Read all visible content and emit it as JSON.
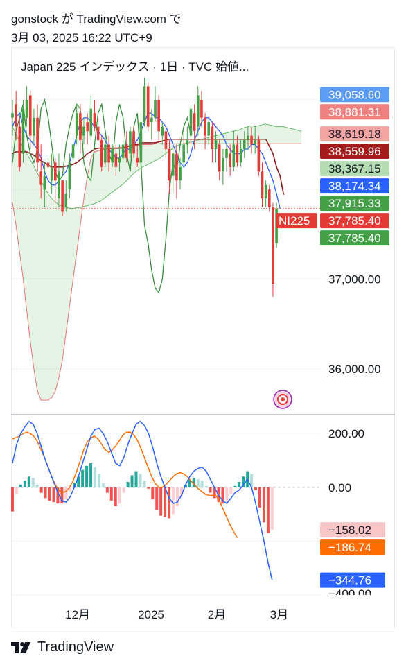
{
  "header": {
    "author": "gonstock が TradingView.com で",
    "timestamp": "3月 03, 2025 16:22 UTC+9"
  },
  "symbol_line": "Japan 225 インデックス · 1日 · TVC  始値...",
  "footer": {
    "brand": "TradingView"
  },
  "chart_data": [
    {
      "type": "candlestick",
      "title": "Japan 225 インデックス · 1日 · TVC",
      "x_tick_labels": [
        "12月",
        "2025",
        "2月",
        "3月"
      ],
      "y_ticks": [
        37000,
        36000
      ],
      "y_tick_labels": [
        "37,000.00",
        "36,000.00"
      ],
      "ylim": [
        35550,
        39200
      ],
      "price_labels": [
        {
          "text": "39,058.60",
          "value": 39058.6,
          "color": "#5b9cf6"
        },
        {
          "text": "38,881.31",
          "value": 38881.31,
          "color": "#f08080"
        },
        {
          "text": "38,619.18",
          "value": 38619.18,
          "color": "#f4a3a3"
        },
        {
          "text": "38,559.96",
          "value": 38559.96,
          "color": "#a61c1c"
        },
        {
          "text": "38,367.15",
          "value": 38367.15,
          "color": "#b6dcb4"
        },
        {
          "text": "38,174.34",
          "value": 38174.34,
          "color": "#2962ff"
        },
        {
          "text": "37,915.33",
          "value": 37915.33,
          "color": "#43a047"
        },
        {
          "text": "37,785.40",
          "value": 37785.4,
          "color": "#e53935"
        },
        {
          "text": "37,785.40",
          "value": 37785.4,
          "color": "#43a047"
        }
      ],
      "symbol_tag": {
        "text": "NI225",
        "color": "#e53935"
      },
      "last_close": 37785.4,
      "candles": [
        {
          "o": 38800,
          "c": 38850,
          "h": 39000,
          "l": 38600
        },
        {
          "o": 38950,
          "c": 38700,
          "h": 39100,
          "l": 38550
        },
        {
          "o": 38700,
          "c": 38250,
          "h": 38800,
          "l": 38200
        },
        {
          "o": 38400,
          "c": 38900,
          "h": 39000,
          "l": 38300
        },
        {
          "o": 38800,
          "c": 39000,
          "h": 39150,
          "l": 38700
        },
        {
          "o": 39050,
          "c": 38600,
          "h": 39100,
          "l": 38450
        },
        {
          "o": 38600,
          "c": 38800,
          "h": 38900,
          "l": 38500
        },
        {
          "o": 38800,
          "c": 38300,
          "h": 38950,
          "l": 38200
        },
        {
          "o": 38200,
          "c": 38050,
          "h": 38500,
          "l": 37900
        },
        {
          "o": 38000,
          "c": 38150,
          "h": 38300,
          "l": 37800
        },
        {
          "o": 38300,
          "c": 38250,
          "h": 38350,
          "l": 37950
        },
        {
          "o": 38100,
          "c": 38250,
          "h": 38400,
          "l": 37950
        },
        {
          "o": 38300,
          "c": 38100,
          "h": 38350,
          "l": 37850
        },
        {
          "o": 37900,
          "c": 38200,
          "h": 38400,
          "l": 37800
        },
        {
          "o": 38100,
          "c": 37750,
          "h": 38100,
          "l": 37700
        },
        {
          "o": 37800,
          "c": 37950,
          "h": 38100,
          "l": 37750
        },
        {
          "o": 38000,
          "c": 38300,
          "h": 38400,
          "l": 37900
        },
        {
          "o": 38350,
          "c": 38500,
          "h": 38600,
          "l": 38300
        },
        {
          "o": 38600,
          "c": 38850,
          "h": 38950,
          "l": 38500
        },
        {
          "o": 38850,
          "c": 38550,
          "h": 38950,
          "l": 38400
        },
        {
          "o": 38600,
          "c": 38700,
          "h": 38800,
          "l": 38500
        },
        {
          "o": 38750,
          "c": 38650,
          "h": 38850,
          "l": 38500
        },
        {
          "o": 38600,
          "c": 38900,
          "h": 39050,
          "l": 38550
        },
        {
          "o": 38850,
          "c": 38700,
          "h": 39000,
          "l": 38650
        },
        {
          "o": 38700,
          "c": 38550,
          "h": 38800,
          "l": 38500
        },
        {
          "o": 38550,
          "c": 38250,
          "h": 38600,
          "l": 38200
        },
        {
          "o": 38300,
          "c": 38500,
          "h": 38600,
          "l": 38250
        },
        {
          "o": 38500,
          "c": 38300,
          "h": 38600,
          "l": 38200
        },
        {
          "o": 38300,
          "c": 38450,
          "h": 38500,
          "l": 38250
        },
        {
          "o": 38400,
          "c": 38250,
          "h": 38500,
          "l": 38150
        },
        {
          "o": 38300,
          "c": 38350,
          "h": 38500,
          "l": 38200
        },
        {
          "o": 38350,
          "c": 38500,
          "h": 38550,
          "l": 38300
        },
        {
          "o": 38500,
          "c": 38350,
          "h": 38650,
          "l": 38300
        },
        {
          "o": 38400,
          "c": 38650,
          "h": 38700,
          "l": 38350
        },
        {
          "o": 38650,
          "c": 38400,
          "h": 38700,
          "l": 38350
        },
        {
          "o": 38350,
          "c": 38300,
          "h": 38500,
          "l": 38250
        },
        {
          "o": 38300,
          "c": 38750,
          "h": 38850,
          "l": 38250
        },
        {
          "o": 38750,
          "c": 39150,
          "h": 39250,
          "l": 38700
        },
        {
          "o": 39150,
          "c": 38700,
          "h": 39200,
          "l": 38650
        },
        {
          "o": 38750,
          "c": 38800,
          "h": 38900,
          "l": 38550
        },
        {
          "o": 38800,
          "c": 39000,
          "h": 39150,
          "l": 38750
        },
        {
          "o": 39000,
          "c": 38650,
          "h": 39050,
          "l": 38550
        },
        {
          "o": 38600,
          "c": 38700,
          "h": 38750,
          "l": 38500
        },
        {
          "o": 38650,
          "c": 38450,
          "h": 38700,
          "l": 38350
        },
        {
          "o": 38450,
          "c": 38100,
          "h": 38550,
          "l": 37950
        },
        {
          "o": 38150,
          "c": 38400,
          "h": 38450,
          "l": 37950
        },
        {
          "o": 38400,
          "c": 38100,
          "h": 38500,
          "l": 37900
        },
        {
          "o": 38100,
          "c": 38250,
          "h": 38350,
          "l": 38000
        },
        {
          "o": 38300,
          "c": 38500,
          "h": 38650,
          "l": 38250
        },
        {
          "o": 38500,
          "c": 38550,
          "h": 38700,
          "l": 38400
        },
        {
          "o": 38600,
          "c": 38900,
          "h": 38950,
          "l": 38500
        },
        {
          "o": 38850,
          "c": 38650,
          "h": 38950,
          "l": 38450
        },
        {
          "o": 38700,
          "c": 39050,
          "h": 39150,
          "l": 38600
        },
        {
          "o": 39000,
          "c": 38800,
          "h": 39100,
          "l": 38700
        },
        {
          "o": 38800,
          "c": 38600,
          "h": 38850,
          "l": 38450
        },
        {
          "o": 38600,
          "c": 38750,
          "h": 38800,
          "l": 38500
        },
        {
          "o": 38700,
          "c": 38450,
          "h": 38750,
          "l": 38300
        },
        {
          "o": 38450,
          "c": 38550,
          "h": 38650,
          "l": 38300
        },
        {
          "o": 38500,
          "c": 38200,
          "h": 38550,
          "l": 38100
        },
        {
          "o": 38200,
          "c": 38350,
          "h": 38450,
          "l": 38050
        },
        {
          "o": 38350,
          "c": 38450,
          "h": 38500,
          "l": 38200
        },
        {
          "o": 38400,
          "c": 38250,
          "h": 38500,
          "l": 38150
        },
        {
          "o": 38250,
          "c": 38500,
          "h": 38650,
          "l": 38200
        },
        {
          "o": 38500,
          "c": 38300,
          "h": 38600,
          "l": 38250
        },
        {
          "o": 38300,
          "c": 38450,
          "h": 38550,
          "l": 38250
        },
        {
          "o": 38450,
          "c": 38550,
          "h": 38650,
          "l": 38350
        },
        {
          "o": 38550,
          "c": 38600,
          "h": 38700,
          "l": 38450
        },
        {
          "o": 38600,
          "c": 38500,
          "h": 38700,
          "l": 38400
        },
        {
          "o": 38500,
          "c": 38550,
          "h": 38700,
          "l": 38400
        },
        {
          "o": 38550,
          "c": 38200,
          "h": 38600,
          "l": 38150
        },
        {
          "o": 38200,
          "c": 37900,
          "h": 38300,
          "l": 37800
        },
        {
          "o": 37900,
          "c": 38050,
          "h": 38100,
          "l": 37800
        },
        {
          "o": 38000,
          "c": 37800,
          "h": 38050,
          "l": 37750
        },
        {
          "o": 37800,
          "c": 36950,
          "h": 37850,
          "l": 36800
        },
        {
          "o": 37400,
          "c": 37785.4,
          "h": 37850,
          "l": 37350
        }
      ],
      "indicators": {
        "ichimoku_span_a": [
          38700,
          38620,
          38540,
          38470,
          38400,
          38330,
          38260,
          38180,
          38100,
          38020,
          37950,
          37900,
          37860,
          37830,
          37810,
          37800,
          37790,
          37790,
          37795,
          37800,
          37810,
          37820,
          37830,
          37840,
          37860,
          37880,
          37910,
          37940,
          37970,
          38000,
          38030,
          38060,
          38100,
          38140,
          38180,
          38210,
          38240,
          38260,
          38280,
          38300,
          38320,
          38340,
          38370,
          38400,
          38430,
          38460,
          38480,
          38500,
          38510,
          38520,
          38530,
          38540,
          38550,
          38560,
          38570,
          38580,
          38590,
          38600,
          38610,
          38620,
          38630,
          38640,
          38650,
          38660,
          38670,
          38690,
          38700,
          38710,
          38700,
          38710,
          38720,
          38730,
          38720,
          38710,
          38700,
          38700,
          38700,
          38690,
          38680,
          38670,
          38660,
          38650
        ],
        "ichimoku_span_b": [
          37850,
          37600,
          37300,
          37000,
          36650,
          36300,
          36000,
          35750,
          35650,
          35650,
          35650,
          35680,
          35750,
          35900,
          36100,
          36400,
          36700,
          37000,
          37300,
          37600,
          37900,
          38150,
          38350,
          38420,
          38430,
          38440,
          38450,
          38450,
          38460,
          38460,
          38470,
          38470,
          38480,
          38480,
          38490,
          38490,
          38500,
          38500,
          38500,
          38500,
          38510,
          38510,
          38510,
          38510,
          38510,
          38510,
          38510,
          38510,
          38510,
          38510,
          38510,
          38510,
          38510,
          38510,
          38510,
          38510,
          38510,
          38510,
          38510,
          38510,
          38510,
          38510,
          38510,
          38510,
          38510,
          38510,
          38510,
          38510,
          38510,
          38510,
          38510,
          38510,
          38510,
          38510,
          38510,
          38510,
          38510,
          38510,
          38510,
          38510,
          38510,
          38510
        ],
        "tenkan": [
          38700,
          38800,
          38850,
          38700,
          38600,
          38550,
          38500,
          38450,
          38350,
          38200,
          38100,
          38050,
          38050,
          38100,
          38150,
          38200,
          38300,
          38450,
          38600,
          38750,
          38800,
          38800,
          38750,
          38700,
          38650,
          38600,
          38550,
          38450,
          38400,
          38350,
          38350,
          38400,
          38450,
          38450,
          38500,
          38550,
          38650,
          38750,
          38850,
          38850,
          38800,
          38800,
          38750,
          38700,
          38600,
          38500,
          38400,
          38300,
          38250,
          38300,
          38400,
          38550,
          38650,
          38750,
          38800,
          38800,
          38750,
          38700,
          38650,
          38600,
          38500,
          38450,
          38400,
          38400,
          38400,
          38450,
          38450,
          38500,
          38500,
          38450,
          38400,
          38300,
          38200,
          38100,
          37950,
          37785
        ],
        "kijun": [
          38400,
          38420,
          38420,
          38420,
          38420,
          38400,
          38380,
          38350,
          38320,
          38300,
          38270,
          38250,
          38250,
          38250,
          38250,
          38260,
          38270,
          38280,
          38300,
          38330,
          38360,
          38400,
          38420,
          38450,
          38460,
          38460,
          38460,
          38460,
          38460,
          38460,
          38460,
          38460,
          38470,
          38490,
          38500,
          38500,
          38520,
          38520,
          38520,
          38520,
          38520,
          38530,
          38540,
          38550,
          38560,
          38560,
          38560,
          38560,
          38560,
          38560,
          38560,
          38560,
          38560,
          38560,
          38560,
          38560,
          38560,
          38560,
          38560,
          38560,
          38560,
          38560,
          38560,
          38560,
          38560,
          38560,
          38560,
          38560,
          38560,
          38560,
          38560,
          38560,
          38480,
          38400,
          38250,
          38150,
          37940
        ],
        "chikou": [
          38300,
          38650,
          38800,
          38950,
          38600,
          38400,
          38300,
          38450,
          38900,
          39000,
          38800,
          38500,
          38200,
          38100,
          38150,
          38500,
          38700,
          38850,
          38950,
          38900,
          38300,
          38150,
          38100,
          38500,
          38850,
          38950,
          38650,
          38400,
          38300,
          38750,
          38950,
          38800,
          38400,
          38200,
          38700,
          38850,
          38300,
          37600,
          37400,
          37100,
          36900,
          36850,
          37000,
          37450,
          38000,
          38300,
          38200,
          38500,
          38700,
          38800,
          38600
        ]
      }
    },
    {
      "type": "macd",
      "y_ticks": [
        200,
        0
      ],
      "y_tick_labels": [
        "200.00",
        "0.00"
      ],
      "ylim": [
        -400,
        265
      ],
      "value_labels": [
        {
          "text": "−158.02",
          "value": -158.02,
          "color": "#f8c6c6"
        },
        {
          "text": "−186.74",
          "value": -186.74,
          "color": "#ff6d00"
        },
        {
          "text": "−344.76",
          "value": -344.76,
          "color": "#2962ff"
        }
      ],
      "clipped_tick_label": "−400.00",
      "macd": [
        90,
        160,
        200,
        225,
        245,
        235,
        200,
        150,
        100,
        60,
        20,
        -20,
        -50,
        -55,
        -35,
        0,
        40,
        90,
        140,
        190,
        215,
        220,
        200,
        170,
        130,
        90,
        80,
        110,
        160,
        200,
        235,
        245,
        230,
        200,
        150,
        90,
        40,
        0,
        -40,
        -60,
        -55,
        -30,
        10,
        40,
        60,
        70,
        75,
        60,
        30,
        0,
        -30,
        -50,
        -60,
        -40,
        -20,
        -10,
        10,
        30,
        0,
        -60,
        -130,
        -200,
        -280,
        -345
      ],
      "signal": [
        180,
        185,
        190,
        200,
        205,
        200,
        190,
        170,
        140,
        110,
        75,
        40,
        10,
        -10,
        -20,
        -15,
        0,
        25,
        60,
        100,
        140,
        170,
        185,
        190,
        180,
        160,
        140,
        130,
        140,
        155,
        175,
        195,
        205,
        205,
        195,
        175,
        145,
        110,
        75,
        40,
        15,
        0,
        0,
        10,
        25,
        40,
        50,
        55,
        50,
        40,
        25,
        10,
        -5,
        -15,
        -25,
        -30,
        -30,
        -30,
        -50,
        -80,
        -110,
        -140,
        -165,
        -187
      ],
      "histogram": [
        -90,
        -25,
        10,
        25,
        40,
        35,
        10,
        -20,
        -40,
        -50,
        -55,
        -60,
        -60,
        -45,
        -15,
        15,
        40,
        65,
        80,
        90,
        75,
        50,
        15,
        -20,
        -50,
        -70,
        -60,
        -20,
        20,
        45,
        60,
        50,
        25,
        -5,
        -45,
        -85,
        -105,
        -110,
        -115,
        -100,
        -70,
        -30,
        10,
        30,
        35,
        30,
        25,
        5,
        -20,
        -40,
        -55,
        -60,
        -55,
        -25,
        5,
        20,
        40,
        60,
        50,
        -10,
        -75,
        -130,
        -170,
        -158
      ]
    }
  ]
}
